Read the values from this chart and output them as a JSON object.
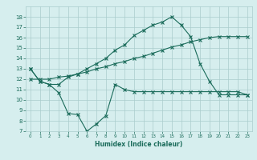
{
  "line1_x": [
    0,
    1,
    2,
    3,
    4,
    5,
    6,
    7,
    8,
    9,
    10,
    11,
    12,
    13,
    14,
    15,
    16,
    17,
    18,
    19,
    20,
    21,
    22,
    23
  ],
  "line1_y": [
    13.0,
    11.8,
    11.5,
    11.5,
    12.2,
    12.5,
    13.0,
    13.5,
    14.0,
    14.8,
    15.3,
    16.2,
    16.7,
    17.2,
    17.5,
    18.0,
    17.2,
    16.1,
    13.5,
    11.8,
    10.5,
    10.5,
    10.5,
    10.5
  ],
  "line2_x": [
    0,
    1,
    2,
    3,
    4,
    5,
    6,
    7,
    8,
    9,
    10,
    11,
    12,
    13,
    14,
    15,
    16,
    17,
    18,
    19,
    20,
    21,
    22,
    23
  ],
  "line2_y": [
    12.0,
    12.0,
    12.0,
    12.2,
    12.3,
    12.5,
    12.7,
    13.0,
    13.2,
    13.5,
    13.7,
    14.0,
    14.2,
    14.5,
    14.8,
    15.1,
    15.3,
    15.6,
    15.8,
    16.0,
    16.1,
    16.1,
    16.1,
    16.1
  ],
  "line3_x": [
    0,
    1,
    2,
    3,
    4,
    5,
    6,
    7,
    8,
    9,
    10,
    11,
    12,
    13,
    14,
    15,
    16,
    17,
    18,
    19,
    20,
    21,
    22,
    23
  ],
  "line3_y": [
    13.0,
    11.8,
    11.5,
    10.7,
    8.7,
    8.6,
    7.0,
    7.7,
    8.5,
    11.5,
    11.0,
    10.8,
    10.8,
    10.8,
    10.8,
    10.8,
    10.8,
    10.8,
    10.8,
    10.8,
    10.8,
    10.8,
    10.8,
    10.5
  ],
  "line_color": "#1a6b5a",
  "bg_color": "#d6eeee",
  "grid_color": "#aacccc",
  "xlabel": "Humidex (Indice chaleur)",
  "ylim": [
    7,
    19
  ],
  "xlim": [
    -0.5,
    23.5
  ],
  "yticks": [
    7,
    8,
    9,
    10,
    11,
    12,
    13,
    14,
    15,
    16,
    17,
    18
  ],
  "xticks": [
    0,
    1,
    2,
    3,
    4,
    5,
    6,
    7,
    8,
    9,
    10,
    11,
    12,
    13,
    14,
    15,
    16,
    17,
    18,
    19,
    20,
    21,
    22,
    23
  ]
}
